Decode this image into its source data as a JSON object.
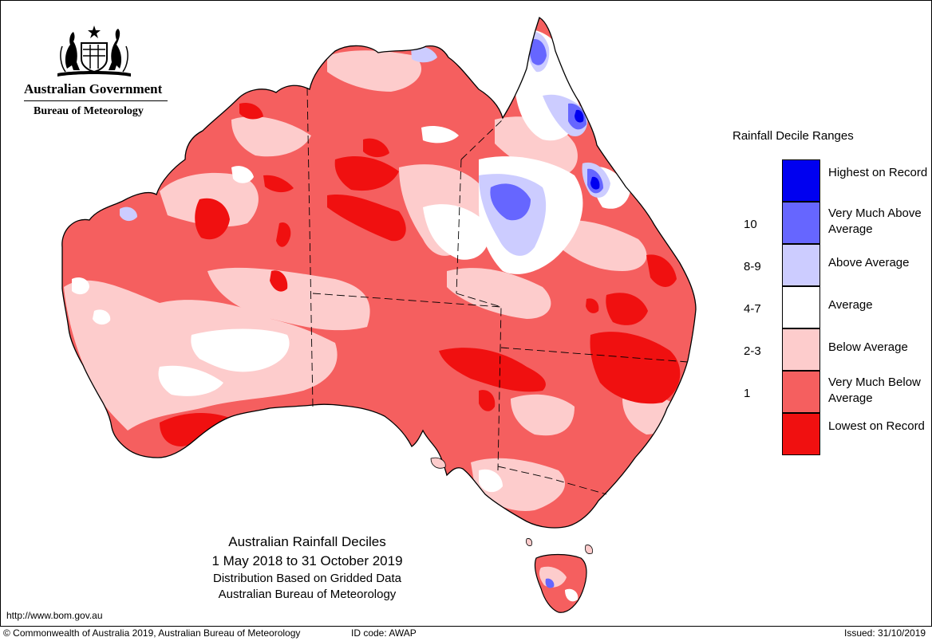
{
  "agency": {
    "government": "Australian Government",
    "bureau": "Bureau of Meteorology"
  },
  "map": {
    "title": "Australian Rainfall Deciles",
    "period": "1 May 2018 to 31 October 2019",
    "method": "Distribution Based on Gridded Data",
    "source": "Australian Bureau of Meteorology"
  },
  "legend": {
    "title": "Rainfall Decile Ranges",
    "categories": [
      {
        "label": "Highest on Record",
        "range": "",
        "color": "#0000f0"
      },
      {
        "label": "Very Much Above Average",
        "range": "10",
        "color": "#6666ff"
      },
      {
        "label": "Above Average",
        "range": "8-9",
        "color": "#ccccff"
      },
      {
        "label": "Average",
        "range": "4-7",
        "color": "#ffffff"
      },
      {
        "label": "Below Average",
        "range": "2-3",
        "color": "#fdcccc"
      },
      {
        "label": "Very Much Below Average",
        "range": "1",
        "color": "#f55f5f"
      },
      {
        "label": "Lowest on Record",
        "range": "",
        "color": "#f01010"
      }
    ]
  },
  "footer": {
    "url": "http://www.bom.gov.au",
    "copyright": "© Commonwealth of Australia 2019, Australian Bureau of Meteorology",
    "id_code": "ID code: AWAP",
    "issued": "Issued: 31/10/2019"
  }
}
